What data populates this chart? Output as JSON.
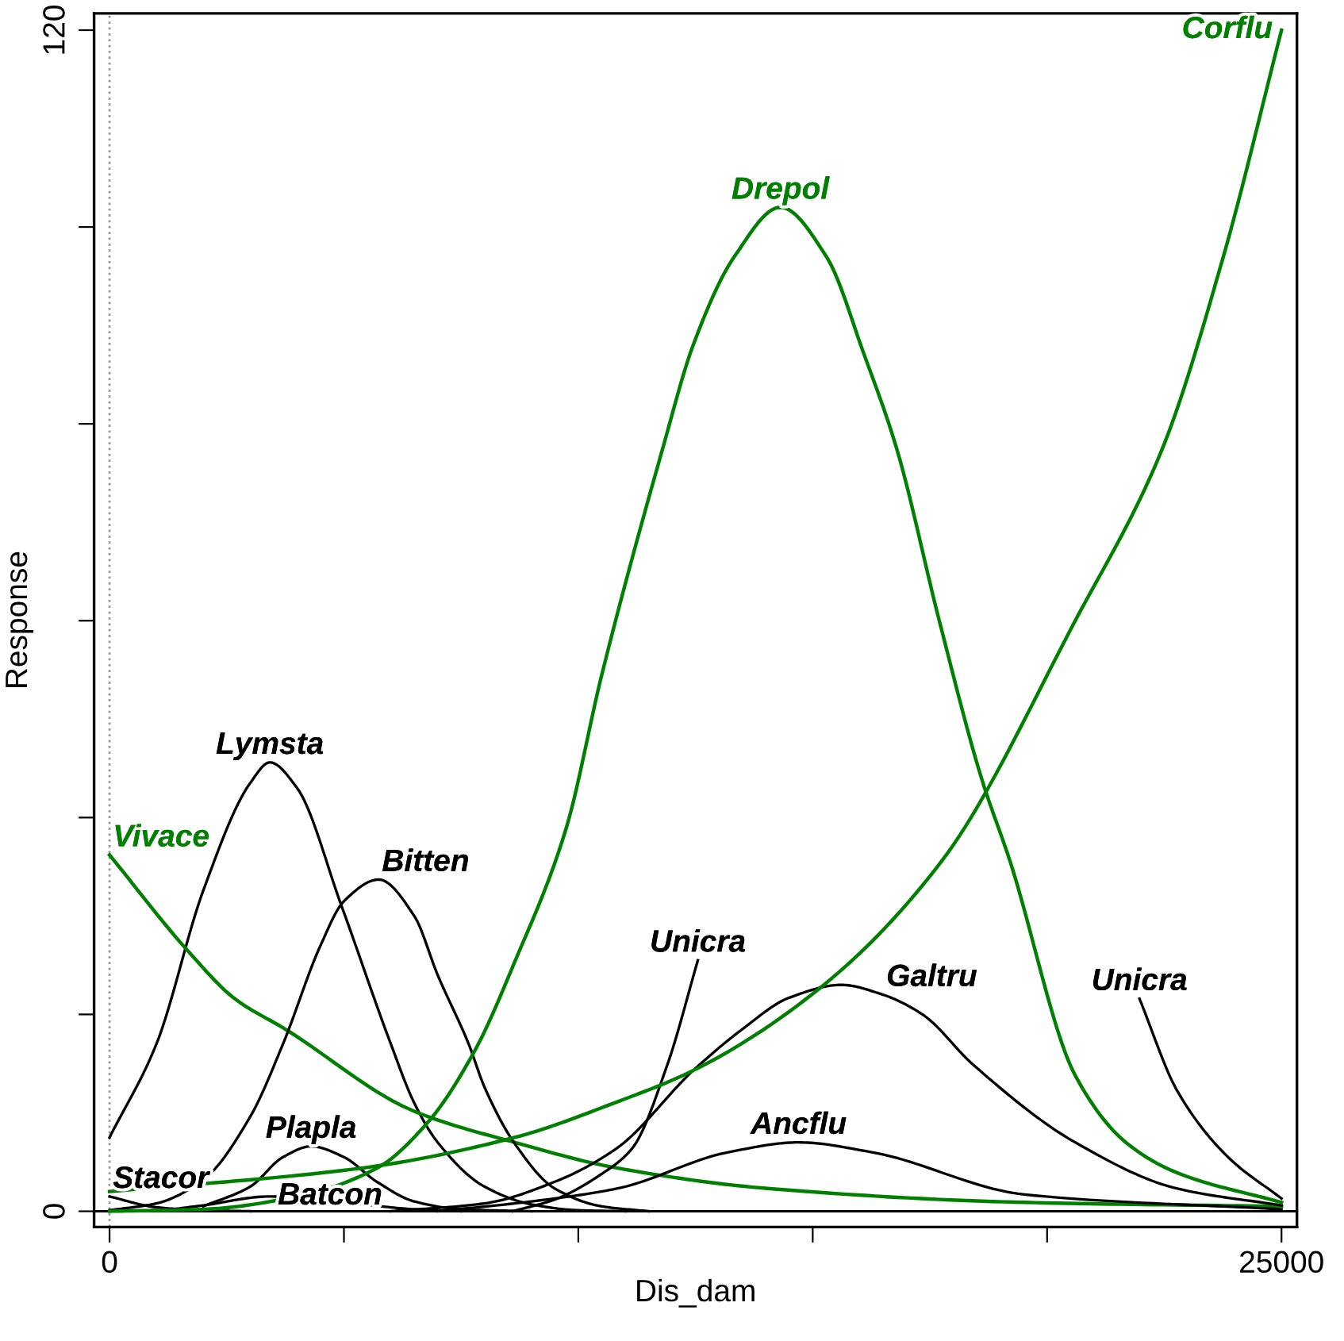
{
  "chart_data": {
    "type": "line",
    "xlabel": "Dis_dam",
    "ylabel": "Response",
    "xlim": [
      -330,
      25330
    ],
    "ylim": [
      -1.6,
      121.7
    ],
    "xticks": [
      0,
      {
        "value": 5000,
        "label": null
      },
      {
        "value": 10000,
        "label": null
      },
      {
        "value": 15000,
        "label": null
      },
      {
        "value": 20000,
        "label": null
      },
      25000
    ],
    "yticks": [
      0,
      {
        "value": 20,
        "label": null
      },
      {
        "value": 40,
        "label": null
      },
      {
        "value": 60,
        "label": null
      },
      {
        "value": 80,
        "label": null
      },
      {
        "value": 100,
        "label": null
      },
      120
    ],
    "grid": false,
    "legend": false,
    "marker": "none",
    "line_style": "solid",
    "ref_lines": [
      {
        "axis": "x",
        "value": 0,
        "color": "#999999",
        "line_style": "dotted"
      },
      {
        "axis": "y",
        "value": 0,
        "color": "#000000",
        "line_style": "solid"
      }
    ],
    "series": [
      {
        "name": "Lymsta",
        "color": "#000000",
        "x": [
          0,
          1000,
          2000,
          3000,
          3420,
          4000,
          4950,
          6000,
          6500,
          7000,
          8000,
          9000,
          10000,
          11000
        ],
        "values": [
          7.5,
          17,
          32.6,
          43.5,
          45.6,
          43,
          31,
          17,
          11,
          7,
          2.5,
          0.7,
          0.1,
          0
        ]
      },
      {
        "name": "Vivace",
        "color": "#008000",
        "x": [
          0,
          1700,
          2670,
          3750,
          6480,
          8640,
          10820,
          14080,
          19520,
          25000
        ],
        "values": [
          36.2,
          26.3,
          21.6,
          18.5,
          10.2,
          7.0,
          4.4,
          2.3,
          0.9,
          0.5
        ]
      },
      {
        "name": "Bitten",
        "color": "#000000",
        "x": [
          0,
          1000,
          2000,
          3000,
          3700,
          4500,
          5000,
          5740,
          6500,
          7000,
          7660,
          8000,
          8640,
          9500,
          10500,
          11500
        ],
        "values": [
          0.1,
          0.8,
          3.2,
          9.6,
          17,
          27,
          31.5,
          33.7,
          30,
          24,
          17,
          12.6,
          6.9,
          2.3,
          0.5,
          0
        ]
      },
      {
        "name": "Stacor",
        "color": "#000000",
        "x": [
          0,
          1000,
          2000,
          3000
        ],
        "values": [
          1.5,
          0.4,
          0.1,
          0
        ]
      },
      {
        "name": "Batcon",
        "color": "#000000",
        "x": [
          1000,
          2000,
          3400,
          5000,
          6500,
          7500
        ],
        "values": [
          0,
          0.6,
          1.5,
          0.9,
          0.2,
          0
        ]
      },
      {
        "name": "Plapla",
        "color": "#000000",
        "x": [
          2000,
          3000,
          3700,
          4300,
          5000,
          5700,
          6500,
          7500,
          9000
        ],
        "values": [
          0.5,
          2.5,
          5.5,
          6.6,
          5.5,
          3,
          1,
          0.2,
          0
        ]
      },
      {
        "name": "Unicra",
        "color": "#000000",
        "x": [
          8600,
          9500,
          10500,
          11150,
          11900,
          12550
        ],
        "values": [
          0,
          1.2,
          3.8,
          6.4,
          14.9,
          25.5
        ]
      },
      {
        "name": "Unicra",
        "color": "#000000",
        "x": [
          21970,
          22780,
          23860,
          25000
        ],
        "values": [
          21.6,
          12.2,
          5.5,
          1.3
        ]
      },
      {
        "name": "Galtru",
        "color": "#000000",
        "x": [
          6000,
          8000,
          9500,
          10820,
          12450,
          13500,
          14500,
          15610,
          16500,
          17340,
          18420,
          20600,
          22780,
          25000
        ],
        "values": [
          0,
          0.8,
          3,
          6.4,
          14.3,
          18.5,
          21.7,
          23,
          22,
          20,
          14.9,
          7,
          2.3,
          0.6
        ]
      },
      {
        "name": "Ancflu",
        "color": "#000000",
        "x": [
          7000,
          9000,
          10820,
          13200,
          14700,
          16260,
          19520,
          25000
        ],
        "values": [
          0,
          1,
          2.3,
          6,
          7,
          6,
          1.7,
          0.2
        ]
      },
      {
        "name": "Drepol",
        "color": "#008000",
        "x": [
          0,
          2000,
          4000,
          5710,
          6800,
          7800,
          8640,
          9740,
          10500,
          11800,
          12450,
          13330,
          14310,
          15290,
          16100,
          16790,
          17700,
          18600,
          19200,
          20600,
          21680,
          22780,
          25000
        ],
        "values": [
          0,
          0.2,
          1.5,
          4.4,
          9.1,
          16.4,
          25.3,
          38.9,
          54.5,
          77.5,
          88,
          97,
          102,
          97,
          87,
          77.5,
          60,
          44,
          35.7,
          13.8,
          7,
          3.9,
          0.9
        ]
      },
      {
        "name": "Corflu",
        "color": "#008000",
        "x": [
          0,
          5400,
          8640,
          10820,
          12450,
          15160,
          17770,
          20600,
          22460,
          23760,
          25000
        ],
        "values": [
          2.0,
          4.4,
          7.5,
          11.1,
          14.3,
          22.7,
          35.7,
          60,
          77.5,
          97,
          120
        ]
      }
    ]
  }
}
